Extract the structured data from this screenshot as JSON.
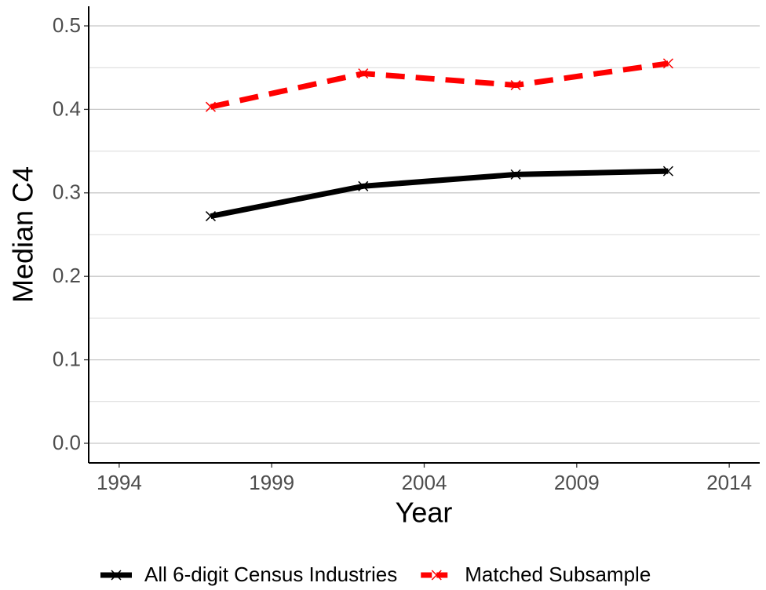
{
  "chart_data": {
    "type": "line",
    "x_label": "Year",
    "y_label": "Median C4",
    "x": [
      1997,
      2002,
      2007,
      2012
    ],
    "series": [
      {
        "name": "All 6-digit Census Industries",
        "color": "#000000",
        "dash": "solid",
        "values": [
          0.272,
          0.308,
          0.322,
          0.326
        ]
      },
      {
        "name": "Matched Subsample",
        "color": "#ff0000",
        "dash": "dashed",
        "values": [
          0.403,
          0.443,
          0.429,
          0.455
        ]
      }
    ],
    "xlim": [
      1993,
      2015
    ],
    "xticks": [
      1994,
      1999,
      2004,
      2009,
      2014
    ],
    "ylim": [
      -0.0235,
      0.5235
    ],
    "yticks": [
      {
        "value": 0,
        "label": "0.0"
      },
      0.1,
      0.2,
      0.3,
      0.4,
      0.5
    ],
    "yminorticks": [
      0.05,
      0.15,
      0.25,
      0.35,
      0.45
    ],
    "grid": "y",
    "legend": "bottom"
  }
}
